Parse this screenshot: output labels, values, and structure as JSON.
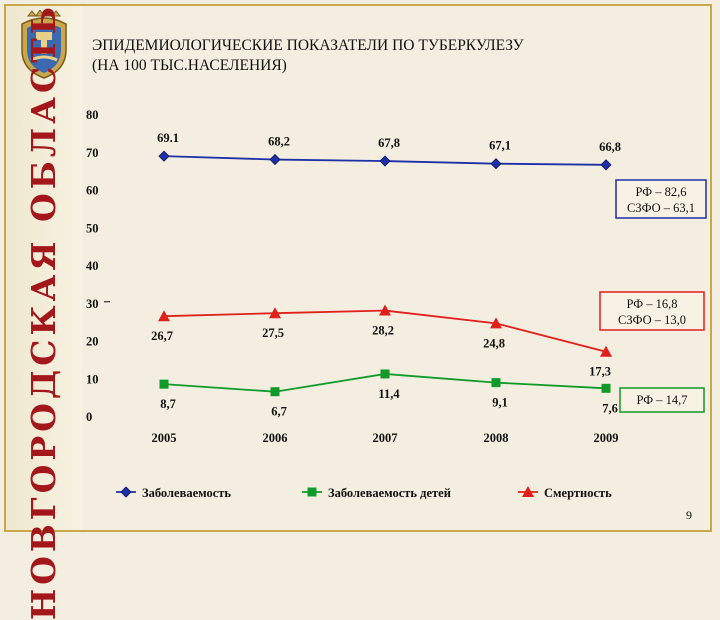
{
  "header": {
    "title_line1": "ЭПИДЕМИОЛОГИЧЕСКИЕ ПОКАЗАТЕЛИ ПО ТУБЕРКУЛЕЗУ",
    "title_line2": "(НА 100 ТЫС.НАСЕЛЕНИЯ)",
    "side_title": "НОВГОРОДСКАЯ ОБЛАСТЬ",
    "crest_icon": "coat-of-arms-icon"
  },
  "page_number": "9",
  "colors": {
    "incidence": "#1f2fa8",
    "children": "#0f9a2a",
    "mortality": "#e0201b",
    "accent": "#a3171b"
  },
  "chart_data": {
    "type": "line",
    "x": [
      "2005",
      "2006",
      "2007",
      "2008",
      "2009"
    ],
    "ylim": [
      0,
      80
    ],
    "yticks": [
      0,
      10,
      20,
      30,
      40,
      50,
      60,
      70,
      80
    ],
    "series": [
      {
        "name": "Заболеваемость",
        "values": [
          69.1,
          68.2,
          67.8,
          67.1,
          66.8
        ],
        "labels": [
          "69.1",
          "68,2",
          "67,8",
          "67,1",
          "66,8"
        ],
        "marker": "diamond",
        "label_pos": "above"
      },
      {
        "name": "Заболеваемость детей",
        "values": [
          8.7,
          6.7,
          11.4,
          9.1,
          7.6
        ],
        "labels": [
          "8,7",
          "6,7",
          "11,4",
          "9,1",
          "7,6"
        ],
        "marker": "square",
        "label_pos": "below"
      },
      {
        "name": "Смертность",
        "values": [
          26.7,
          27.5,
          28.2,
          24.8,
          17.3
        ],
        "labels": [
          "26,7",
          "27,5",
          "28,2",
          "24,8",
          "17,3"
        ],
        "marker": "triangle",
        "label_pos": "below"
      }
    ],
    "annotations": [
      {
        "lines": [
          "РФ – 82,6",
          "СЗФО – 63,1"
        ],
        "series": 0
      },
      {
        "lines": [
          "РФ – 16,8",
          "СЗФО – 13,0"
        ],
        "series": 2
      },
      {
        "lines": [
          "РФ – 14,7"
        ],
        "series": 1
      }
    ],
    "legend": "bottom",
    "grid": false
  }
}
